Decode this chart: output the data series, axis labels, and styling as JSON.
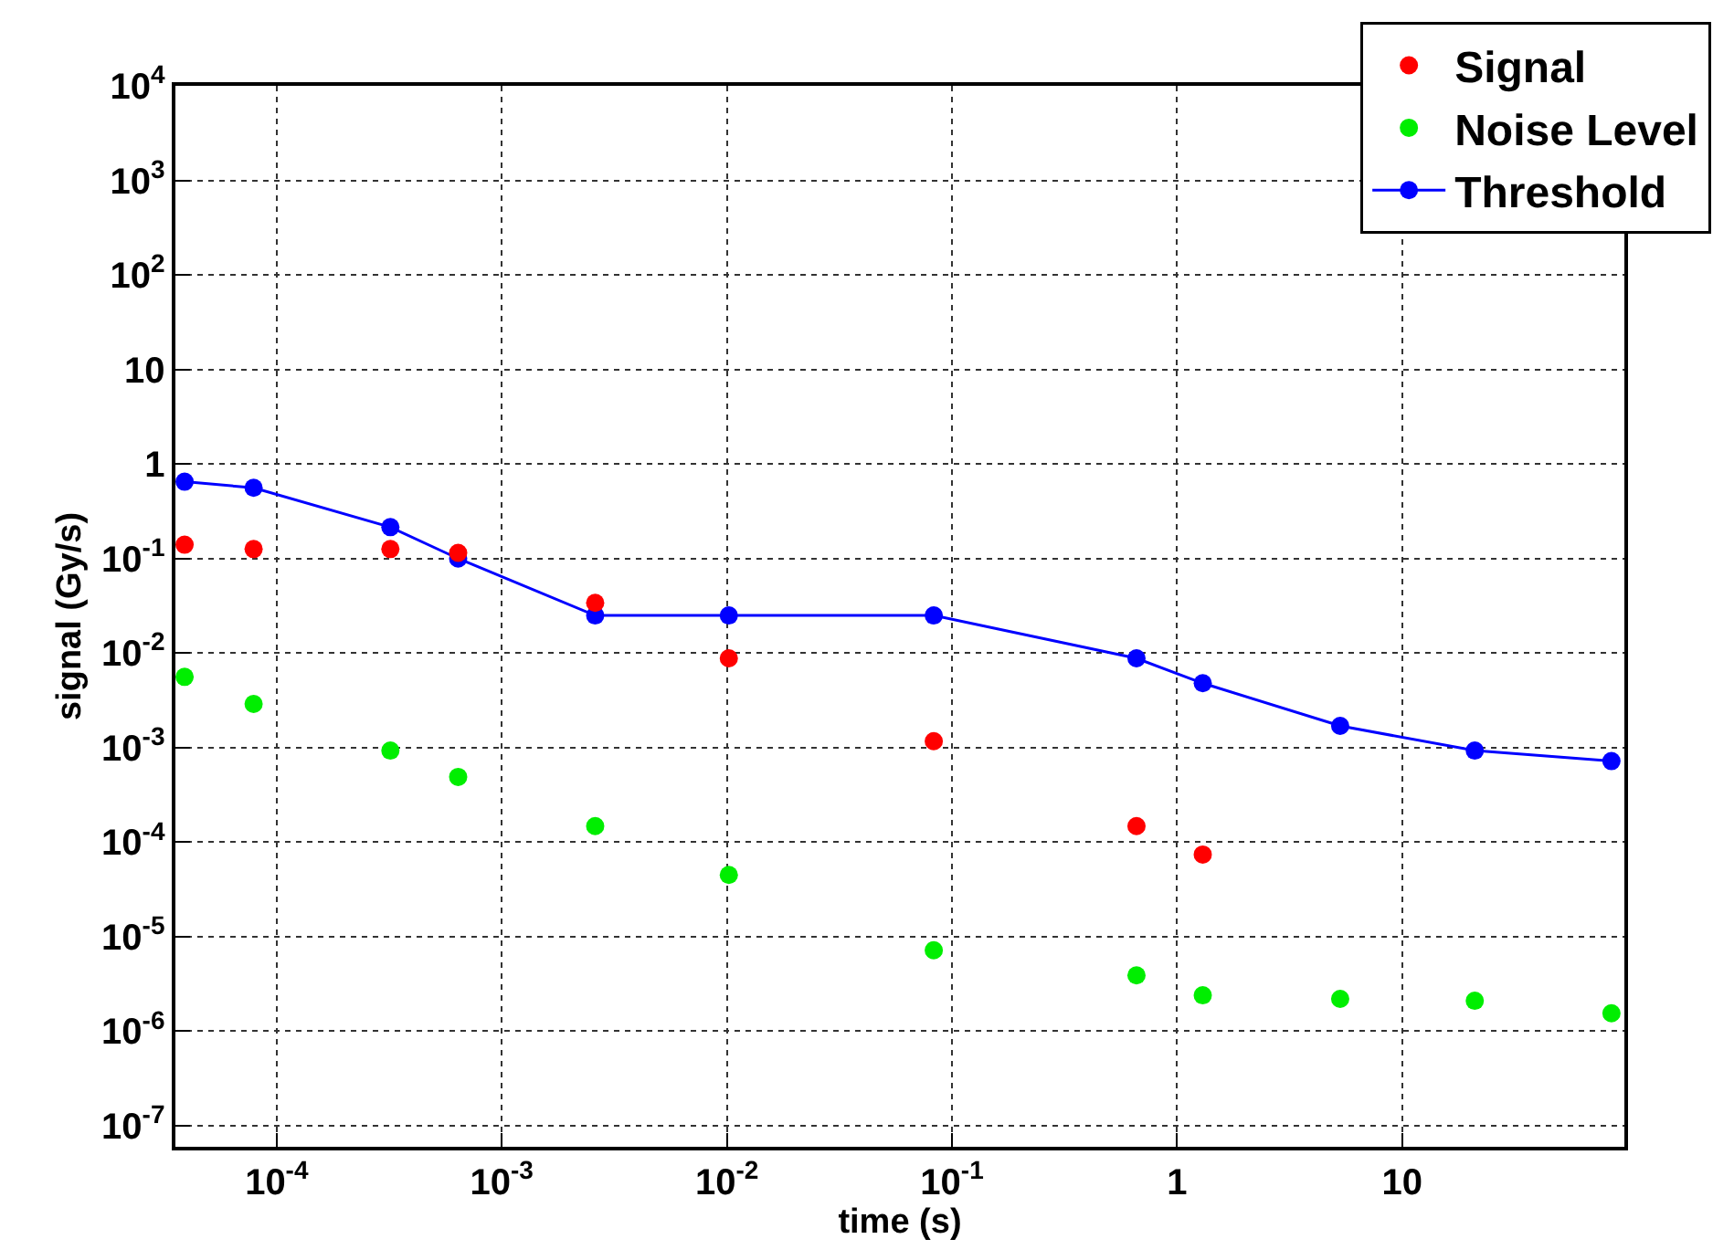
{
  "chart_data": {
    "type": "scatter",
    "xlabel": "time (s)",
    "ylabel": "signal (Gy/s)",
    "log": "xy",
    "grid": true,
    "legend": "top right",
    "marker": "circle",
    "xlim": [
      3.55e-05,
      97
    ],
    "ylim": [
      6e-08,
      10000.0
    ],
    "xticks": [
      {
        "value": 0.0001,
        "label": "10$^{-4}$"
      },
      {
        "value": 0.001,
        "label": "10$^{-3}$"
      },
      {
        "value": 0.01,
        "label": "10$^{-2}$"
      },
      {
        "value": 0.1,
        "label": "10$^{-1}$"
      },
      1,
      10
    ],
    "yticks": [
      {
        "value": 1e-07,
        "label": "10$^{-7}$"
      },
      {
        "value": 1e-06,
        "label": "10$^{-6}$"
      },
      {
        "value": 1e-05,
        "label": "10$^{-5}$"
      },
      {
        "value": 0.0001,
        "label": "10$^{-4}$"
      },
      {
        "value": 0.001,
        "label": "10$^{-3}$"
      },
      {
        "value": 0.01,
        "label": "10$^{-2}$"
      },
      {
        "value": 0.1,
        "label": "10$^{-1}$"
      },
      1,
      10,
      {
        "value": 100,
        "label": "10$^{2}$"
      },
      {
        "value": 1000,
        "label": "10$^{3}$"
      },
      {
        "value": 10000,
        "label": "10$^{4}$"
      }
    ],
    "series": [
      {
        "name": "Signal",
        "color": "#ff0000",
        "x": [
          3.9e-05,
          7.9e-05,
          0.00032,
          0.00064,
          0.0026,
          0.0102,
          0.083,
          0.66,
          1.3
        ],
        "values": [
          0.14,
          0.126,
          0.126,
          0.115,
          0.034,
          0.0088,
          0.00117,
          0.000148,
          7.4e-05
        ]
      },
      {
        "name": "Noise Level",
        "color": "#00ee00",
        "x": [
          3.9e-05,
          7.9e-05,
          0.00032,
          0.00064,
          0.0026,
          0.0102,
          0.083,
          0.66,
          1.3,
          5.3,
          21,
          85
        ],
        "values": [
          0.0056,
          0.0029,
          0.00093,
          0.00049,
          0.000148,
          4.5e-05,
          7.2e-06,
          3.9e-06,
          2.4e-06,
          2.2e-06,
          2.1e-06,
          1.55e-06
        ]
      },
      {
        "name": "Threshold",
        "type": "line",
        "line_style": "solid",
        "color": "#0000ff",
        "x": [
          3.9e-05,
          7.9e-05,
          0.00032,
          0.00064,
          0.0026,
          0.0102,
          0.083,
          0.66,
          1.3,
          5.3,
          21,
          85
        ],
        "values": [
          0.65,
          0.56,
          0.215,
          0.1,
          0.025,
          0.025,
          0.025,
          0.0088,
          0.0048,
          0.0017,
          0.00093,
          0.00072
        ]
      }
    ]
  }
}
